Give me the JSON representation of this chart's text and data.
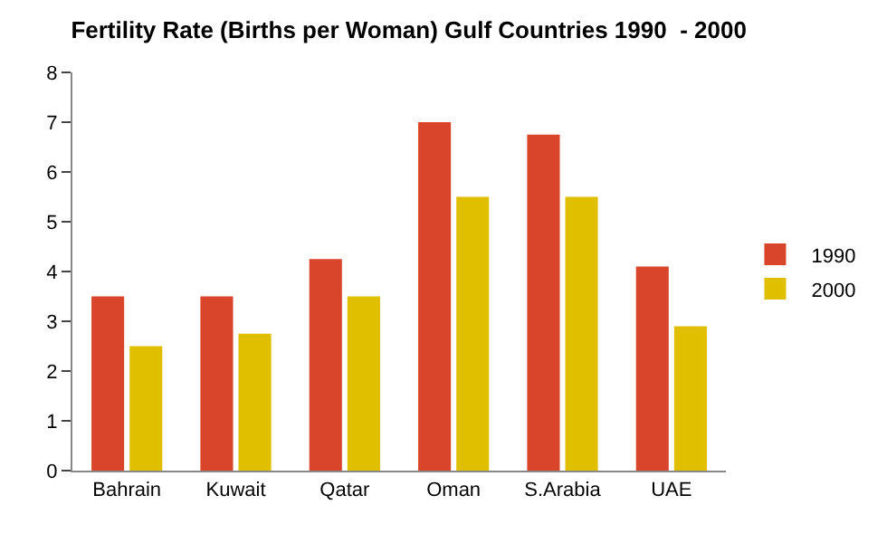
{
  "chart_data": {
    "type": "bar",
    "title": "Fertility Rate (Births per Woman) Gulf Countries 1990  - 2000",
    "categories": [
      "Bahrain",
      "Kuwait",
      "Qatar",
      "Oman",
      "S.Arabia",
      "UAE"
    ],
    "series": [
      {
        "name": "1990",
        "color": "#d9452b",
        "values": [
          3.5,
          3.5,
          4.25,
          7,
          6.75,
          4.1
        ]
      },
      {
        "name": "2000",
        "color": "#e0be00",
        "values": [
          2.5,
          2.75,
          3.5,
          5.5,
          5.5,
          2.9
        ]
      }
    ],
    "ylim": [
      0,
      8
    ],
    "yticks": [
      0,
      1,
      2,
      3,
      4,
      5,
      6,
      7,
      8
    ],
    "grid": false,
    "legend": "right"
  }
}
